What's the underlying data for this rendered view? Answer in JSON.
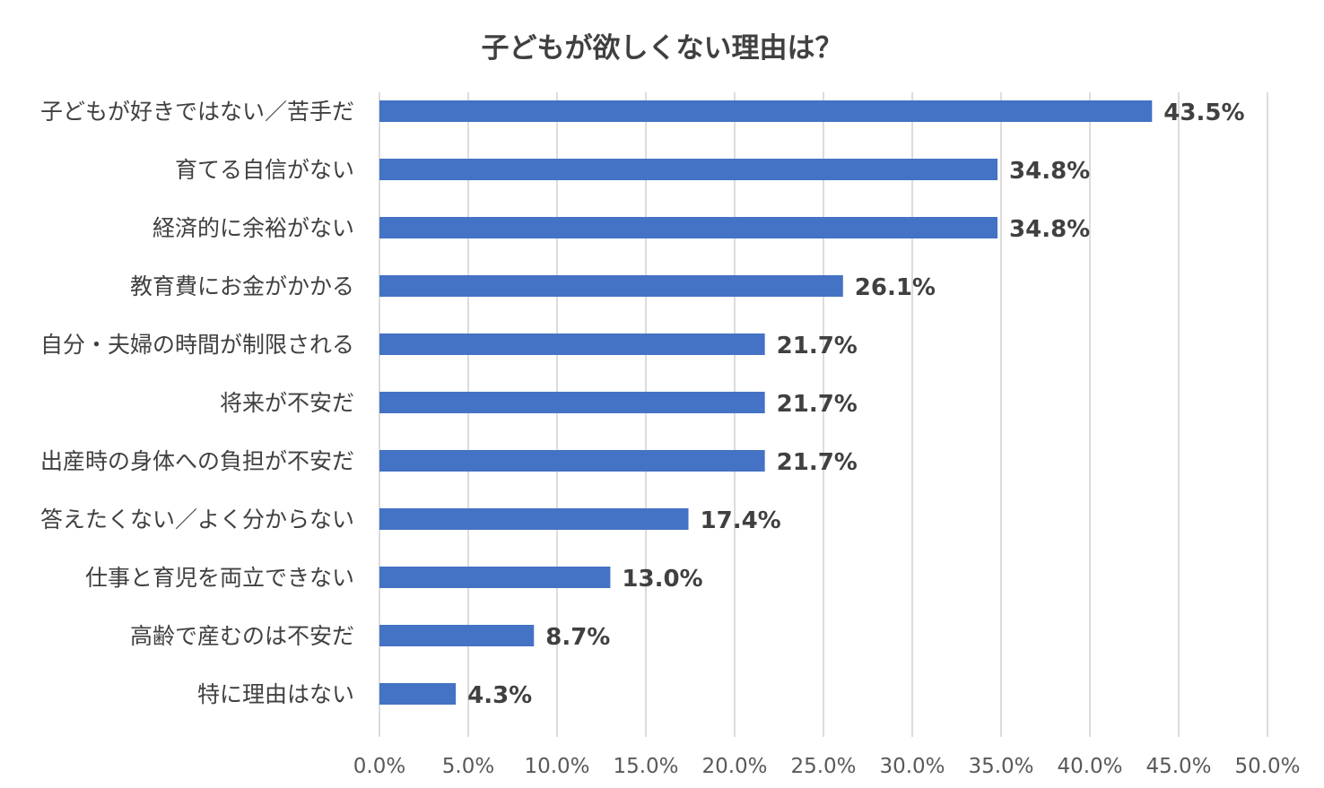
{
  "chart_data": {
    "type": "bar",
    "orientation": "horizontal",
    "title": "子どもが欲しくない理由は？",
    "categories": [
      "子どもが好きではない／苦手だ",
      "育てる自信がない",
      "経済的に余裕がない",
      "教育費にお金がかかる",
      "自分・夫婦の時間が制限される",
      "将来が不安だ",
      "出産時の身体への負担が不安だ",
      "答えたくない／よく分からない",
      "仕事と育児を両立できない",
      "高齢で産むのは不安だ",
      "特に理由はない"
    ],
    "values": [
      43.5,
      34.8,
      34.8,
      26.1,
      21.7,
      21.7,
      21.7,
      17.4,
      13.0,
      8.7,
      4.3
    ],
    "value_labels": [
      "43.5%",
      "34.8%",
      "34.8%",
      "26.1%",
      "21.7%",
      "21.7%",
      "21.7%",
      "17.4%",
      "13.0%",
      "8.7%",
      "4.3%"
    ],
    "xlim": [
      0,
      50
    ],
    "x_ticks": [
      "0.0%",
      "5.0%",
      "10.0%",
      "15.0%",
      "20.0%",
      "25.0%",
      "30.0%",
      "35.0%",
      "40.0%",
      "45.0%",
      "50.0%"
    ],
    "grid": true,
    "legend": "none",
    "bar_color": "#4472c4"
  }
}
